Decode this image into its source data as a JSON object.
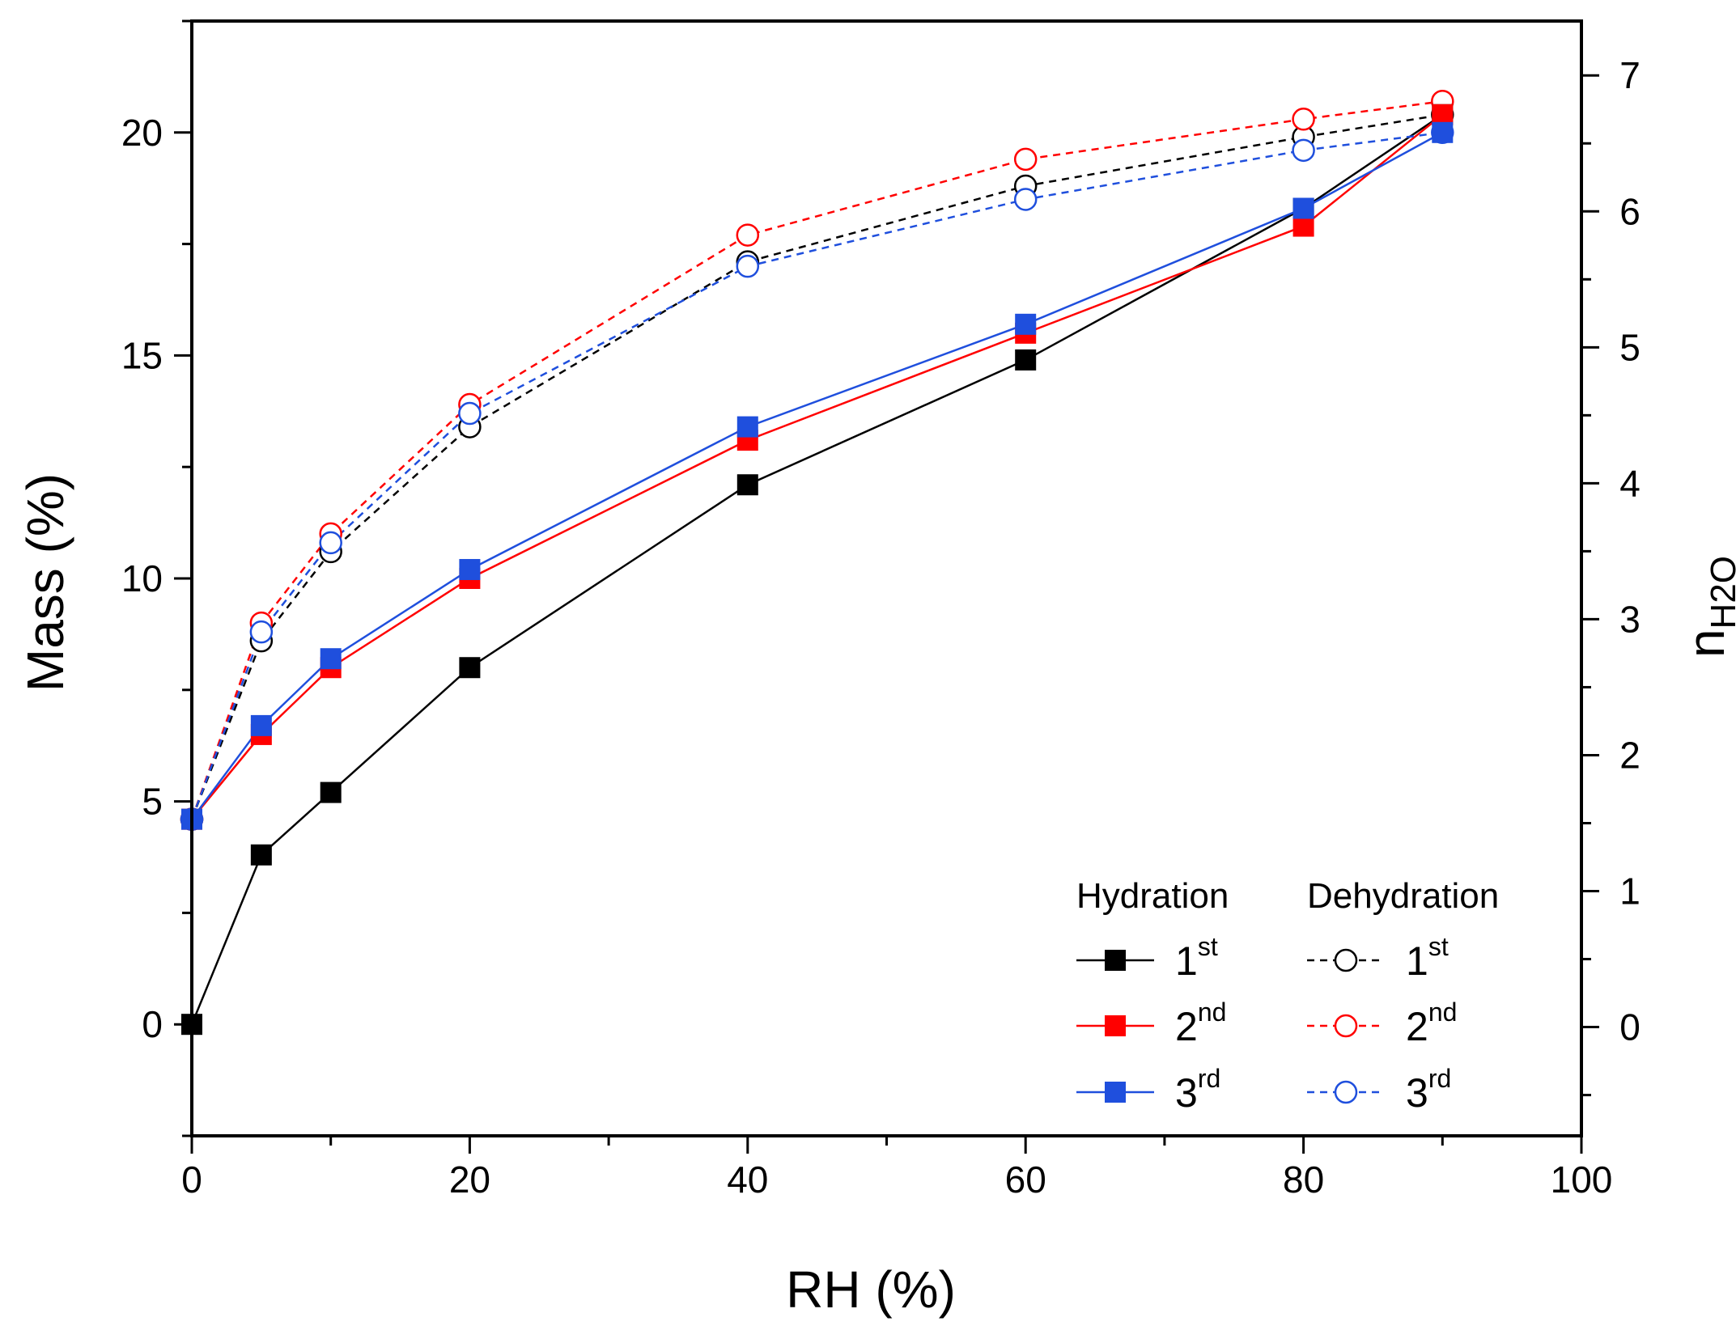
{
  "chart_data": {
    "type": "line",
    "title": "",
    "xlabel": "RH (%)",
    "ylabel": "Mass (%)",
    "y2label_main": "n",
    "y2label_sub": "H2O",
    "xlim": [
      0,
      100
    ],
    "ylim": [
      -2.5,
      22.5
    ],
    "y2lim": [
      -0.8,
      7.4
    ],
    "x_ticks": [
      0,
      20,
      40,
      60,
      80,
      100
    ],
    "x_tick_labels": [
      "0",
      "20",
      "40",
      "60",
      "80",
      "100"
    ],
    "y_ticks": [
      0,
      5,
      10,
      15,
      20
    ],
    "y_tick_labels": [
      "0",
      "5",
      "10",
      "15",
      "20"
    ],
    "y2_ticks": [
      0,
      1,
      2,
      3,
      4,
      5,
      6,
      7
    ],
    "y2_tick_labels": [
      "0",
      "1",
      "2",
      "3",
      "4",
      "5",
      "6",
      "7"
    ],
    "legend": {
      "position": "bottom-right",
      "hydration_header": "Hydration",
      "dehydration_header": "Dehydration"
    },
    "series": [
      {
        "name": "Hydration 1st",
        "group": "Hydration",
        "num": "1",
        "sup": "st",
        "color": "#000000",
        "marker": "square",
        "dash": false,
        "x": [
          0,
          5,
          10,
          20,
          40,
          60,
          80,
          90
        ],
        "values": [
          0.0,
          3.8,
          5.2,
          8.0,
          12.1,
          14.9,
          18.3,
          20.4
        ]
      },
      {
        "name": "Hydration 2nd",
        "group": "Hydration",
        "num": "2",
        "sup": "nd",
        "color": "#ff0000",
        "marker": "square",
        "dash": false,
        "x": [
          0,
          5,
          10,
          20,
          40,
          60,
          80,
          90
        ],
        "values": [
          4.6,
          6.5,
          8.0,
          10.0,
          13.1,
          15.5,
          17.9,
          20.4
        ]
      },
      {
        "name": "Hydration 3rd",
        "group": "Hydration",
        "num": "3",
        "sup": "rd",
        "color": "#1f4fdd",
        "marker": "square",
        "dash": false,
        "x": [
          0,
          5,
          10,
          20,
          40,
          60,
          80,
          90
        ],
        "values": [
          4.6,
          6.7,
          8.2,
          10.2,
          13.4,
          15.7,
          18.3,
          20.0
        ]
      },
      {
        "name": "Dehydration 1st",
        "group": "Dehydration",
        "num": "1",
        "sup": "st",
        "color": "#000000",
        "marker": "circle",
        "dash": true,
        "x": [
          0,
          5,
          10,
          20,
          40,
          60,
          80,
          90
        ],
        "values": [
          4.6,
          8.6,
          10.6,
          13.4,
          17.1,
          18.8,
          19.9,
          20.4
        ]
      },
      {
        "name": "Dehydration 2nd",
        "group": "Dehydration",
        "num": "2",
        "sup": "nd",
        "color": "#ff0000",
        "marker": "circle",
        "dash": true,
        "x": [
          0,
          5,
          10,
          20,
          40,
          60,
          80,
          90
        ],
        "values": [
          4.6,
          9.0,
          11.0,
          13.9,
          17.7,
          19.4,
          20.3,
          20.7
        ]
      },
      {
        "name": "Dehydration 3rd",
        "group": "Dehydration",
        "num": "3",
        "sup": "rd",
        "color": "#1f4fdd",
        "marker": "circle",
        "dash": true,
        "x": [
          0,
          5,
          10,
          20,
          40,
          60,
          80,
          90
        ],
        "values": [
          4.6,
          8.8,
          10.8,
          13.7,
          17.0,
          18.5,
          19.6,
          20.0
        ]
      }
    ]
  }
}
